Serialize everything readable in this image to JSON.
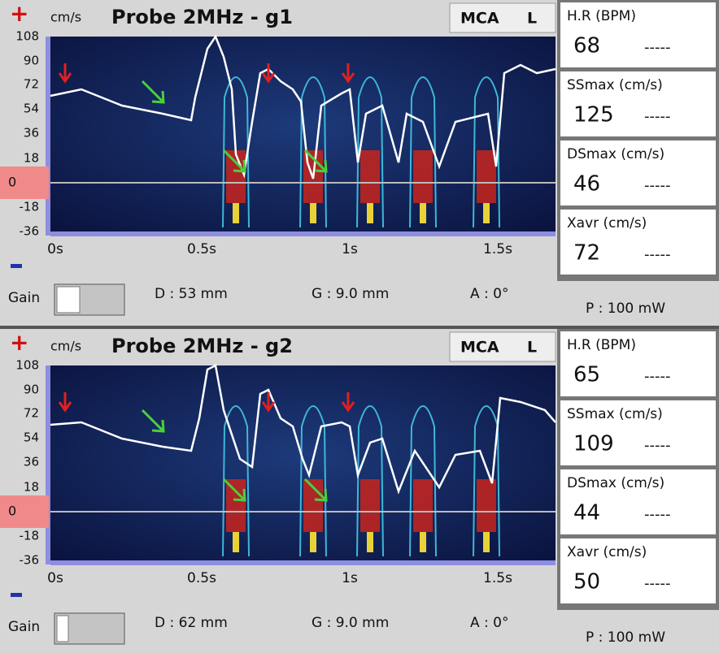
{
  "panels": [
    {
      "plus": "+",
      "unit": "cm/s",
      "title": "Probe 2MHz - g1",
      "vessel": "MCA",
      "side": "L",
      "y_labels": [
        "108",
        "90",
        "72",
        "54",
        "36",
        "18",
        "-18",
        "-36"
      ],
      "zero_label": "0",
      "x_labels": [
        "0s",
        "0.5s",
        "1s",
        "1.5s"
      ],
      "gain_label": "Gain",
      "depth": "D : 53 mm",
      "gate": "G : 9.0 mm",
      "angle": "A : 0°",
      "power": "P : 100 mW",
      "metrics": [
        {
          "label": "H.R (BPM)",
          "value": "68",
          "secondary": "-----"
        },
        {
          "label": "SSmax (cm/s)",
          "value": "125",
          "secondary": "-----"
        },
        {
          "label": "DSmax (cm/s)",
          "value": "46",
          "secondary": "-----"
        },
        {
          "label": "Xavr (cm/s)",
          "value": "72",
          "secondary": "-----"
        }
      ]
    },
    {
      "plus": "+",
      "unit": "cm/s",
      "title": "Probe 2MHz - g2",
      "vessel": "MCA",
      "side": "L",
      "y_labels": [
        "108",
        "90",
        "72",
        "54",
        "36",
        "18",
        "-18",
        "-36"
      ],
      "zero_label": "0",
      "x_labels": [
        "0s",
        "0.5s",
        "1s",
        "1.5s"
      ],
      "gain_label": "Gain",
      "depth": "D : 62 mm",
      "gate": "G : 9.0 mm",
      "angle": "A : 0°",
      "power": "P : 100 mW",
      "metrics": [
        {
          "label": "H.R (BPM)",
          "value": "65",
          "secondary": "-----"
        },
        {
          "label": "SSmax (cm/s)",
          "value": "109",
          "secondary": "-----"
        },
        {
          "label": "DSmax (cm/s)",
          "value": "44",
          "secondary": "-----"
        },
        {
          "label": "Xavr (cm/s)",
          "value": "50",
          "secondary": "-----"
        }
      ]
    }
  ]
}
